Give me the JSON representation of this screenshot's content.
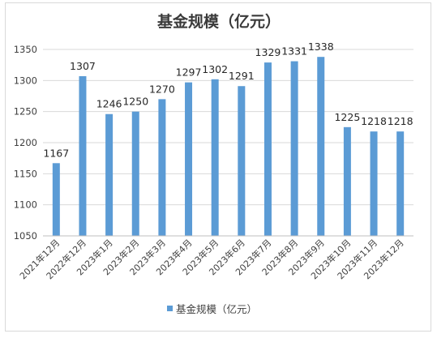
{
  "chart_data": {
    "type": "bar",
    "title": "基金规模（亿元）",
    "categories": [
      "2021年12月",
      "2022年12月",
      "2023年1月",
      "2023年2月",
      "2023年3月",
      "2023年4月",
      "2023年5月",
      "2023年6月",
      "2023年7月",
      "2023年8月",
      "2023年9月",
      "2023年10月",
      "2023年11月",
      "2023年12月"
    ],
    "series": [
      {
        "name": "基金规模（亿元）",
        "values": [
          1167,
          1307,
          1246,
          1250,
          1270,
          1297,
          1302,
          1291,
          1329,
          1331,
          1338,
          1225,
          1218,
          1218
        ],
        "color": "#5b9bd5"
      }
    ],
    "ylim": [
      1050,
      1350
    ],
    "yticks": [
      1050,
      1100,
      1150,
      1200,
      1250,
      1300,
      1350
    ],
    "grid": true,
    "legend": "bottom"
  }
}
